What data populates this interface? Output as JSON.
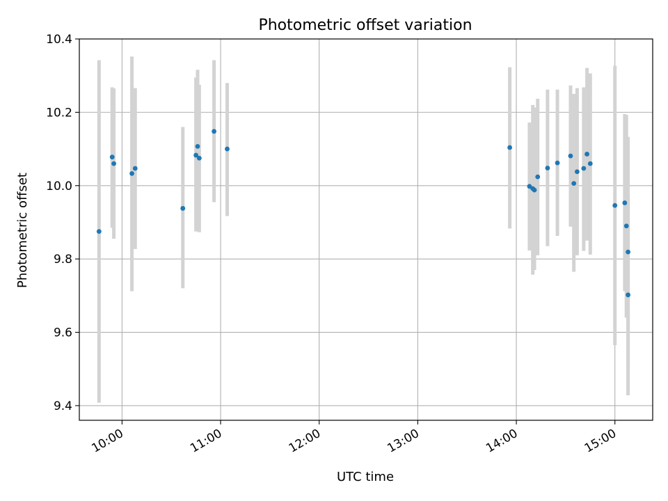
{
  "chart_data": {
    "type": "scatter",
    "title": "Photometric offset variation",
    "xlabel": "UTC time",
    "ylabel": "Photometric offset",
    "x_ticks": [
      "10:00",
      "11:00",
      "12:00",
      "13:00",
      "14:00",
      "15:00"
    ],
    "y_ticks": [
      "9.4",
      "9.6",
      "9.8",
      "10.0",
      "10.2",
      "10.4"
    ],
    "xlim": [
      "09:34",
      "15:23"
    ],
    "ylim": [
      9.36,
      10.4
    ],
    "grid": true,
    "colors": {
      "point": "#1f77b4",
      "errorbar": "#d3d3d3",
      "grid": "#b0b0b0"
    },
    "points": [
      {
        "x": "09:46",
        "y": 9.875,
        "yerr_low": 9.408,
        "yerr_high": 10.342
      },
      {
        "x": "09:54",
        "y": 10.078,
        "yerr_low": 9.885,
        "yerr_high": 10.268
      },
      {
        "x": "09:55",
        "y": 10.06,
        "yerr_low": 9.855,
        "yerr_high": 10.265
      },
      {
        "x": "10:06",
        "y": 10.033,
        "yerr_low": 9.712,
        "yerr_high": 10.352
      },
      {
        "x": "10:08",
        "y": 10.047,
        "yerr_low": 9.827,
        "yerr_high": 10.266
      },
      {
        "x": "10:37",
        "y": 9.938,
        "yerr_low": 9.72,
        "yerr_high": 10.16
      },
      {
        "x": "10:45",
        "y": 10.083,
        "yerr_low": 9.875,
        "yerr_high": 10.295
      },
      {
        "x": "10:46",
        "y": 10.107,
        "yerr_low": 9.875,
        "yerr_high": 10.316
      },
      {
        "x": "10:47",
        "y": 10.075,
        "yerr_low": 9.873,
        "yerr_high": 10.275
      },
      {
        "x": "10:56",
        "y": 10.148,
        "yerr_low": 9.955,
        "yerr_high": 10.342
      },
      {
        "x": "11:04",
        "y": 10.1,
        "yerr_low": 9.917,
        "yerr_high": 10.28
      },
      {
        "x": "13:56",
        "y": 10.104,
        "yerr_low": 9.883,
        "yerr_high": 10.323
      },
      {
        "x": "14:08",
        "y": 9.998,
        "yerr_low": 9.823,
        "yerr_high": 10.172
      },
      {
        "x": "14:10",
        "y": 9.992,
        "yerr_low": 9.757,
        "yerr_high": 10.22
      },
      {
        "x": "14:11",
        "y": 9.988,
        "yerr_low": 9.77,
        "yerr_high": 10.213
      },
      {
        "x": "14:13",
        "y": 10.024,
        "yerr_low": 9.81,
        "yerr_high": 10.237
      },
      {
        "x": "14:19",
        "y": 10.048,
        "yerr_low": 9.835,
        "yerr_high": 10.262
      },
      {
        "x": "14:25",
        "y": 10.062,
        "yerr_low": 9.863,
        "yerr_high": 10.262
      },
      {
        "x": "14:33",
        "y": 10.081,
        "yerr_low": 9.888,
        "yerr_high": 10.273
      },
      {
        "x": "14:35",
        "y": 10.006,
        "yerr_low": 9.765,
        "yerr_high": 10.25
      },
      {
        "x": "14:37",
        "y": 10.038,
        "yerr_low": 9.81,
        "yerr_high": 10.266
      },
      {
        "x": "14:41",
        "y": 10.047,
        "yerr_low": 9.822,
        "yerr_high": 10.268
      },
      {
        "x": "14:43",
        "y": 10.086,
        "yerr_low": 9.85,
        "yerr_high": 10.321
      },
      {
        "x": "14:45",
        "y": 10.06,
        "yerr_low": 9.812,
        "yerr_high": 10.306
      },
      {
        "x": "15:00",
        "y": 9.946,
        "yerr_low": 9.565,
        "yerr_high": 10.327
      },
      {
        "x": "15:06",
        "y": 9.953,
        "yerr_low": 9.712,
        "yerr_high": 10.195
      },
      {
        "x": "15:07",
        "y": 9.89,
        "yerr_low": 9.64,
        "yerr_high": 10.193
      },
      {
        "x": "15:08",
        "y": 9.819,
        "yerr_low": 9.505,
        "yerr_high": 10.133
      },
      {
        "x": "15:08",
        "y": 9.702,
        "yerr_low": 9.428,
        "yerr_high": 9.976
      }
    ]
  }
}
